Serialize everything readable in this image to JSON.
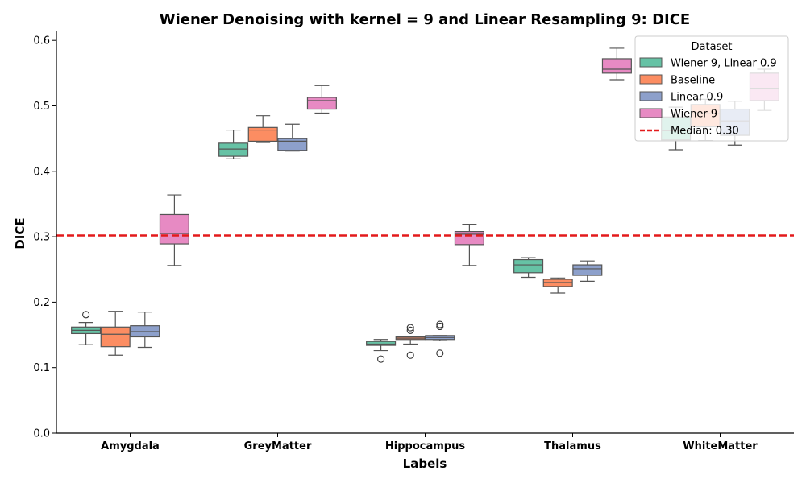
{
  "chart_data": {
    "type": "box",
    "title": "Wiener Denoising with kernel = 9 and Linear Resampling 9: DICE",
    "xlabel": "Labels",
    "ylabel": "DICE",
    "ylim": [
      0.0,
      0.615
    ],
    "yticks": [
      0.0,
      0.1,
      0.2,
      0.3,
      0.4,
      0.5,
      0.6
    ],
    "ytick_labels": [
      "0.0",
      "0.1",
      "0.2",
      "0.3",
      "0.4",
      "0.5",
      "0.6"
    ],
    "grid": false,
    "categories": [
      "Amygdala",
      "GreyMatter",
      "Hippocampus",
      "Thalamus",
      "WhiteMatter"
    ],
    "legend": {
      "title": "Dataset",
      "position": "top-right",
      "median_line_label": "Median: 0.30"
    },
    "median_line": {
      "value": 0.302,
      "color": "#e31a1c"
    },
    "series": [
      {
        "name": "Wiener 9, Linear 0.9",
        "color": "#66c2a5",
        "boxes": [
          {
            "whislo": 0.135,
            "q1": 0.152,
            "med": 0.157,
            "q3": 0.162,
            "whishi": 0.169,
            "fliers": [
              0.181
            ]
          },
          {
            "whislo": 0.419,
            "q1": 0.423,
            "med": 0.434,
            "q3": 0.443,
            "whishi": 0.463,
            "fliers": []
          },
          {
            "whislo": 0.126,
            "q1": 0.134,
            "med": 0.136,
            "q3": 0.14,
            "whishi": 0.143,
            "fliers": [
              0.113
            ]
          },
          {
            "whislo": 0.238,
            "q1": 0.245,
            "med": 0.257,
            "q3": 0.265,
            "whishi": 0.268,
            "fliers": []
          },
          {
            "whislo": 0.433,
            "q1": 0.448,
            "med": 0.462,
            "q3": 0.483,
            "whishi": 0.498,
            "fliers": []
          }
        ]
      },
      {
        "name": "Baseline",
        "color": "#fc8d62",
        "boxes": [
          {
            "whislo": 0.119,
            "q1": 0.132,
            "med": 0.151,
            "q3": 0.162,
            "whishi": 0.186,
            "fliers": []
          },
          {
            "whislo": 0.444,
            "q1": 0.446,
            "med": 0.463,
            "q3": 0.467,
            "whishi": 0.485,
            "fliers": []
          },
          {
            "whislo": 0.136,
            "q1": 0.143,
            "med": 0.145,
            "q3": 0.147,
            "whishi": 0.148,
            "fliers": [
              0.119,
              0.157,
              0.161
            ]
          },
          {
            "whislo": 0.214,
            "q1": 0.224,
            "med": 0.23,
            "q3": 0.235,
            "whishi": 0.237,
            "fliers": []
          },
          {
            "whislo": 0.447,
            "q1": 0.468,
            "med": 0.488,
            "q3": 0.502,
            "whishi": 0.51,
            "fliers": []
          }
        ]
      },
      {
        "name": "Linear 0.9",
        "color": "#8da0cb",
        "boxes": [
          {
            "whislo": 0.131,
            "q1": 0.147,
            "med": 0.155,
            "q3": 0.164,
            "whishi": 0.185,
            "fliers": []
          },
          {
            "whislo": 0.431,
            "q1": 0.432,
            "med": 0.446,
            "q3": 0.45,
            "whishi": 0.472,
            "fliers": []
          },
          {
            "whislo": 0.141,
            "q1": 0.143,
            "med": 0.146,
            "q3": 0.149,
            "whishi": 0.149,
            "fliers": [
              0.122,
              0.163,
              0.166
            ]
          },
          {
            "whislo": 0.232,
            "q1": 0.241,
            "med": 0.251,
            "q3": 0.257,
            "whishi": 0.263,
            "fliers": []
          },
          {
            "whislo": 0.44,
            "q1": 0.455,
            "med": 0.477,
            "q3": 0.495,
            "whishi": 0.507,
            "fliers": []
          }
        ]
      },
      {
        "name": "Wiener 9",
        "color": "#e78ac3",
        "boxes": [
          {
            "whislo": 0.256,
            "q1": 0.289,
            "med": 0.305,
            "q3": 0.334,
            "whishi": 0.364,
            "fliers": []
          },
          {
            "whislo": 0.489,
            "q1": 0.495,
            "med": 0.508,
            "q3": 0.513,
            "whishi": 0.531,
            "fliers": []
          },
          {
            "whislo": 0.256,
            "q1": 0.288,
            "med": 0.304,
            "q3": 0.308,
            "whishi": 0.319,
            "fliers": []
          },
          {
            "whislo": 0.54,
            "q1": 0.55,
            "med": 0.556,
            "q3": 0.572,
            "whishi": 0.588,
            "fliers": []
          },
          {
            "whislo": 0.493,
            "q1": 0.508,
            "med": 0.527,
            "q3": 0.55,
            "whishi": 0.556,
            "fliers": []
          }
        ]
      }
    ]
  }
}
